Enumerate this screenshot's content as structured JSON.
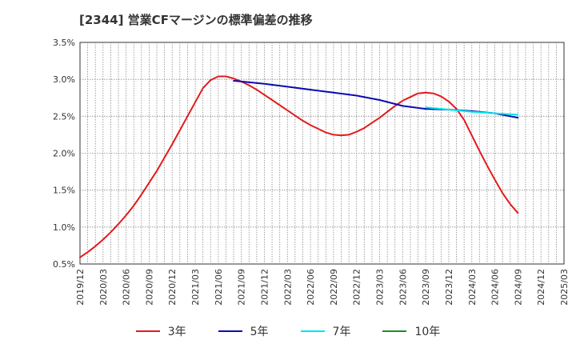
{
  "title": "[2344]  営業CFマージンの標準偏差の推移",
  "chart_data": {
    "type": "line",
    "title": "[2344]  営業CFマージンの標準偏差の推移",
    "xlabel": "",
    "ylabel": "",
    "x_ticks": [
      "2019/12",
      "2020/03",
      "2020/06",
      "2020/09",
      "2020/12",
      "2021/03",
      "2021/06",
      "2021/09",
      "2021/12",
      "2022/03",
      "2022/06",
      "2022/09",
      "2022/12",
      "2023/03",
      "2023/06",
      "2023/09",
      "2023/12",
      "2024/03",
      "2024/06",
      "2024/09",
      "2024/12",
      "2025/03"
    ],
    "y_ticks": [
      "0.5%",
      "1.0%",
      "1.5%",
      "2.0%",
      "2.5%",
      "3.0%",
      "3.5%"
    ],
    "ylim": [
      0.5,
      3.5
    ],
    "grid": true,
    "legend_position": "bottom",
    "series": [
      {
        "name": "3年",
        "color": "#e31a1c",
        "points": [
          [
            "2019/12",
            0.59
          ],
          [
            "2020/01",
            0.66
          ],
          [
            "2020/02",
            0.74
          ],
          [
            "2020/03",
            0.83
          ],
          [
            "2020/04",
            0.93
          ],
          [
            "2020/05",
            1.04
          ],
          [
            "2020/06",
            1.16
          ],
          [
            "2020/07",
            1.29
          ],
          [
            "2020/08",
            1.44
          ],
          [
            "2020/09",
            1.6
          ],
          [
            "2020/10",
            1.76
          ],
          [
            "2020/11",
            1.94
          ],
          [
            "2020/12",
            2.12
          ],
          [
            "2021/01",
            2.31
          ],
          [
            "2021/02",
            2.5
          ],
          [
            "2021/03",
            2.69
          ],
          [
            "2021/04",
            2.88
          ],
          [
            "2021/05",
            2.99
          ],
          [
            "2021/06",
            3.04
          ],
          [
            "2021/07",
            3.04
          ],
          [
            "2021/08",
            3.01
          ],
          [
            "2021/09",
            2.97
          ],
          [
            "2021/10",
            2.92
          ],
          [
            "2021/11",
            2.86
          ],
          [
            "2021/12",
            2.79
          ],
          [
            "2022/01",
            2.72
          ],
          [
            "2022/02",
            2.65
          ],
          [
            "2022/03",
            2.58
          ],
          [
            "2022/04",
            2.51
          ],
          [
            "2022/05",
            2.44
          ],
          [
            "2022/06",
            2.38
          ],
          [
            "2022/07",
            2.33
          ],
          [
            "2022/08",
            2.28
          ],
          [
            "2022/09",
            2.25
          ],
          [
            "2022/10",
            2.24
          ],
          [
            "2022/11",
            2.25
          ],
          [
            "2022/12",
            2.29
          ],
          [
            "2023/01",
            2.34
          ],
          [
            "2023/02",
            2.41
          ],
          [
            "2023/03",
            2.48
          ],
          [
            "2023/04",
            2.56
          ],
          [
            "2023/05",
            2.64
          ],
          [
            "2023/06",
            2.71
          ],
          [
            "2023/07",
            2.76
          ],
          [
            "2023/08",
            2.81
          ],
          [
            "2023/09",
            2.82
          ],
          [
            "2023/10",
            2.81
          ],
          [
            "2023/11",
            2.77
          ],
          [
            "2023/12",
            2.7
          ],
          [
            "2024/01",
            2.6
          ],
          [
            "2024/02",
            2.45
          ],
          [
            "2024/03",
            2.24
          ],
          [
            "2024/04",
            2.03
          ],
          [
            "2024/05",
            1.83
          ],
          [
            "2024/06",
            1.64
          ],
          [
            "2024/07",
            1.46
          ],
          [
            "2024/08",
            1.31
          ],
          [
            "2024/09",
            1.19
          ]
        ]
      },
      {
        "name": "5年",
        "color": "#0a0ab4",
        "points": [
          [
            "2021/08",
            2.98
          ],
          [
            "2021/09",
            2.97
          ],
          [
            "2021/12",
            2.94
          ],
          [
            "2022/03",
            2.9
          ],
          [
            "2022/06",
            2.86
          ],
          [
            "2022/09",
            2.82
          ],
          [
            "2022/12",
            2.78
          ],
          [
            "2023/03",
            2.72
          ],
          [
            "2023/06",
            2.64
          ],
          [
            "2023/09",
            2.6
          ],
          [
            "2023/12",
            2.59
          ],
          [
            "2024/03",
            2.57
          ],
          [
            "2024/06",
            2.54
          ],
          [
            "2024/09",
            2.48
          ]
        ]
      },
      {
        "name": "7年",
        "color": "#00e5ee",
        "points": [
          [
            "2023/09",
            2.62
          ],
          [
            "2023/12",
            2.59
          ],
          [
            "2024/03",
            2.56
          ],
          [
            "2024/06",
            2.54
          ],
          [
            "2024/09",
            2.52
          ]
        ]
      },
      {
        "name": "10年",
        "color": "#228b22",
        "points": []
      }
    ]
  }
}
